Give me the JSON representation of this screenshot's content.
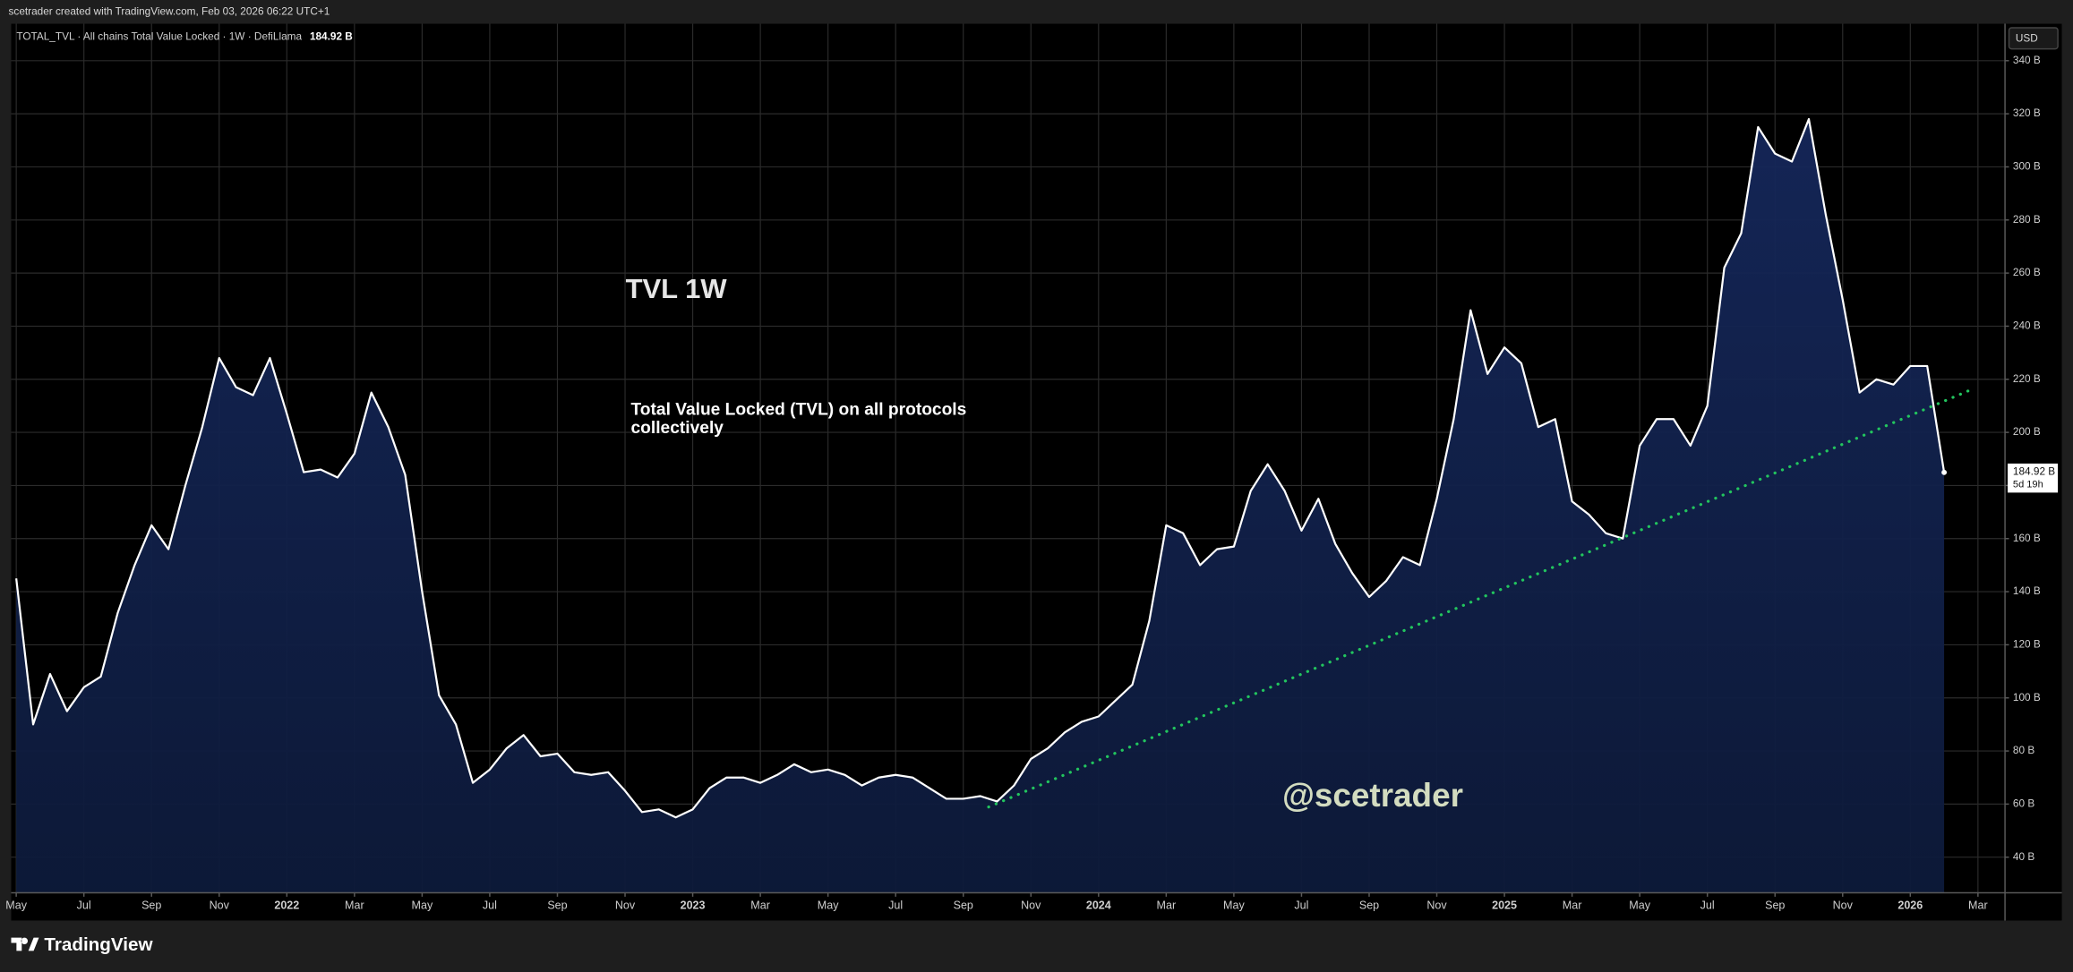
{
  "header": {
    "credit": "scetrader created with TradingView.com, Feb 03, 2026 06:22 UTC+1",
    "logo": "TradingView"
  },
  "chart_data": {
    "type": "area",
    "legend_label": "TOTAL_TVL · All chains Total Value Locked · 1W · DefiLlama",
    "currency": "USD",
    "title": "TVL 1W",
    "subtitle": "Total Value Locked (TVL) on all protocols collectively",
    "watermark": "@scetrader",
    "countdown": "5d 19h",
    "last_value_label": "184.92 B",
    "grid": true,
    "series": [
      {
        "name": "TOTAL_TVL",
        "color": "#ffffff",
        "fill": "#12224a",
        "values": [
          145,
          90,
          109,
          95,
          104,
          108,
          132,
          150,
          165,
          156,
          180,
          202,
          228,
          217,
          214,
          228,
          207,
          185,
          186,
          183,
          192,
          215,
          202,
          184,
          140,
          101,
          90,
          68,
          73,
          81,
          86,
          78,
          79,
          72,
          71,
          72,
          65,
          57,
          58,
          55,
          58,
          66,
          70,
          70,
          68,
          71,
          75,
          72,
          73,
          71,
          67,
          70,
          71,
          70,
          66,
          62,
          62,
          63,
          61,
          67,
          77,
          81,
          87,
          91,
          93,
          99,
          105,
          129,
          165,
          162,
          150,
          156,
          157,
          178,
          188,
          178,
          163,
          175,
          158,
          147,
          138,
          144,
          153,
          150,
          175,
          205,
          246,
          222,
          232,
          226,
          202,
          205,
          174,
          169,
          162,
          160,
          195,
          205,
          205,
          195,
          210,
          262,
          275,
          315,
          305,
          302,
          318,
          282,
          250,
          215,
          220,
          218,
          225,
          225,
          184.92
        ]
      }
    ],
    "trendline": {
      "color": "#22c55e",
      "x": [
        57.5,
        115.6
      ],
      "y": [
        58.9,
        216.1
      ]
    },
    "xlim": [
      -0.3,
      117.6
    ],
    "xticks": [
      {
        "value": 0,
        "label": "May"
      },
      {
        "value": 4,
        "label": "Jul"
      },
      {
        "value": 8,
        "label": "Sep"
      },
      {
        "value": 12,
        "label": "Nov"
      },
      {
        "value": 16,
        "label": "2022"
      },
      {
        "value": 20,
        "label": "Mar"
      },
      {
        "value": 24,
        "label": "May"
      },
      {
        "value": 28,
        "label": "Jul"
      },
      {
        "value": 32,
        "label": "Sep"
      },
      {
        "value": 36,
        "label": "Nov"
      },
      {
        "value": 40,
        "label": "2023"
      },
      {
        "value": 44,
        "label": "Mar"
      },
      {
        "value": 48,
        "label": "May"
      },
      {
        "value": 52,
        "label": "Jul"
      },
      {
        "value": 56,
        "label": "Sep"
      },
      {
        "value": 60,
        "label": "Nov"
      },
      {
        "value": 64,
        "label": "2024"
      },
      {
        "value": 68,
        "label": "Mar"
      },
      {
        "value": 72,
        "label": "May"
      },
      {
        "value": 76,
        "label": "Jul"
      },
      {
        "value": 80,
        "label": "Sep"
      },
      {
        "value": 84,
        "label": "Nov"
      },
      {
        "value": 88,
        "label": "2025"
      },
      {
        "value": 92,
        "label": "Mar"
      },
      {
        "value": 96,
        "label": "May"
      },
      {
        "value": 100,
        "label": "Jul"
      },
      {
        "value": 104,
        "label": "Sep"
      },
      {
        "value": 108,
        "label": "Nov"
      },
      {
        "value": 112,
        "label": "2026"
      },
      {
        "value": 116,
        "label": "Mar"
      }
    ],
    "ylim": [
      26.6,
      353.9
    ],
    "yticks": [
      {
        "value": 40,
        "label": "40 B"
      },
      {
        "value": 60,
        "label": "60 B"
      },
      {
        "value": 80,
        "label": "80 B"
      },
      {
        "value": 100,
        "label": "100 B"
      },
      {
        "value": 120,
        "label": "120 B"
      },
      {
        "value": 140,
        "label": "140 B"
      },
      {
        "value": 160,
        "label": "160 B"
      },
      {
        "value": 180,
        "label": "180 B"
      },
      {
        "value": 200,
        "label": "200 B"
      },
      {
        "value": 220,
        "label": "220 B"
      },
      {
        "value": 240,
        "label": "240 B"
      },
      {
        "value": 260,
        "label": "260 B"
      },
      {
        "value": 280,
        "label": "280 B"
      },
      {
        "value": 300,
        "label": "300 B"
      },
      {
        "value": 320,
        "label": "320 B"
      },
      {
        "value": 340,
        "label": "340 B"
      }
    ]
  }
}
